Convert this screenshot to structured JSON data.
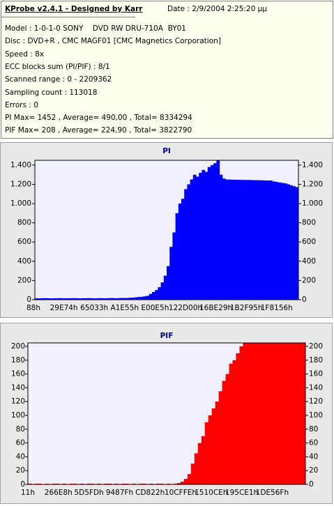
{
  "header": {
    "title": "KProbe v2.4.1 - Designed by Karr",
    "date": "Date : 2/9/2004 2:25:20 μμ",
    "lines": [
      "Model : 1-0-1-0 SONY    DVD RW DRU-710A  BY01",
      "Disc : DVD+R , CMC MAGF01 [CMC Magnetics Corporation]",
      "Speed : 8x",
      "ECC blocks sum (PI/PIF) : 8/1",
      "Scanned range : 0 - 2209362",
      "Sampling count : 113018",
      "Errors : 0",
      "PI Max= 1452 , Average= 490,00 , Total= 8334294",
      "PIF Max= 208 , Average= 224,90 , Total= 3822790"
    ]
  },
  "chart_data": [
    {
      "type": "bar",
      "title": "PI",
      "color": "#0000ff",
      "x_labels": [
        "88h",
        "29E74h",
        "65033h",
        "A1E55h",
        "E00E5h",
        "122D00h",
        "16BE29h",
        "1B2F95h",
        "1F8156h"
      ],
      "ylim": [
        0,
        1450
      ],
      "yticks": [
        0,
        200,
        400,
        600,
        800,
        {
          "value": 1000,
          "label": "1.000"
        },
        {
          "value": 1200,
          "label": "1.200"
        },
        {
          "value": 1400,
          "label": "1.400"
        }
      ],
      "values": [
        15,
        14,
        15,
        16,
        15,
        14,
        15,
        15,
        16,
        15,
        14,
        15,
        15,
        16,
        15,
        14,
        15,
        15,
        16,
        15,
        14,
        15,
        16,
        15,
        15,
        16,
        17,
        15,
        16,
        18,
        17,
        18,
        20,
        22,
        25,
        28,
        30,
        35,
        40,
        60,
        80,
        100,
        130,
        180,
        250,
        350,
        550,
        700,
        900,
        1000,
        1050,
        1150,
        1200,
        1250,
        1300,
        1280,
        1320,
        1350,
        1330,
        1380,
        1400,
        1420,
        1452,
        1300,
        1260,
        1250,
        1250,
        1248,
        1248,
        1247,
        1246,
        1246,
        1245,
        1245,
        1244,
        1243,
        1243,
        1242,
        1241,
        1240,
        1240,
        1230,
        1225,
        1220,
        1215,
        1210,
        1200,
        1190,
        1180,
        1170
      ]
    },
    {
      "type": "bar",
      "title": "PIF",
      "color": "#ff0000",
      "x_labels": [
        "11h",
        "266E8h",
        "5D5FDh",
        "9487Fh",
        "CD822h",
        "10CFFEh",
        "1510CEh",
        "195CE1h",
        "1DE56Fh"
      ],
      "ylim": [
        0,
        205
      ],
      "yticks": [
        0,
        20,
        40,
        60,
        80,
        100,
        120,
        140,
        160,
        180,
        200
      ],
      "values": [
        1,
        0,
        1,
        1,
        0,
        1,
        0,
        1,
        1,
        0,
        1,
        0,
        1,
        1,
        0,
        1,
        0,
        1,
        1,
        0,
        1,
        0,
        1,
        1,
        0,
        1,
        0,
        1,
        1,
        0,
        1,
        0,
        1,
        1,
        0,
        1,
        0,
        1,
        1,
        0,
        1,
        0,
        1,
        2,
        4,
        8,
        15,
        30,
        45,
        60,
        70,
        90,
        100,
        110,
        120,
        135,
        150,
        160,
        175,
        180,
        190,
        200,
        205,
        208,
        206,
        208,
        208,
        208,
        208,
        208,
        208,
        208,
        208,
        208,
        208,
        208,
        208,
        208,
        208,
        208
      ]
    }
  ]
}
